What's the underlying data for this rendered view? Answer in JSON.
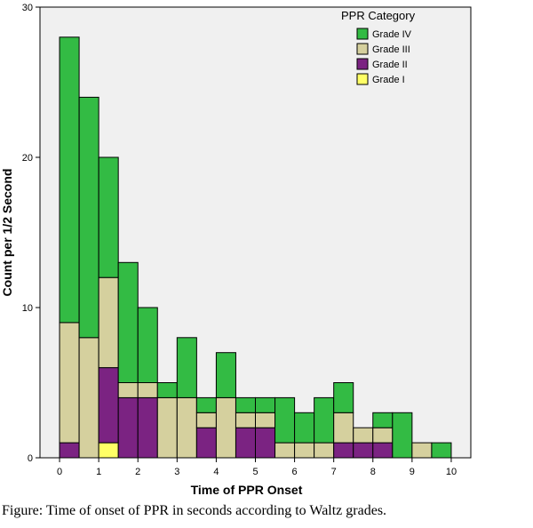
{
  "chart_data": {
    "type": "bar",
    "stacked": true,
    "histogram": true,
    "bin_width": 0.5,
    "xlabel": "Time of PPR Onset",
    "ylabel": "Count per 1/2 Second",
    "xlim": [
      -0.5,
      10.5
    ],
    "ylim": [
      0,
      30
    ],
    "x_ticks": [
      0,
      1,
      2,
      3,
      4,
      5,
      6,
      7,
      8,
      9,
      10
    ],
    "y_ticks": [
      0,
      10,
      20,
      30
    ],
    "grid": false,
    "legend": {
      "title": "PPR Category",
      "position": "top-right"
    },
    "plot_background": "#f0f0f0",
    "bins": [
      0,
      0.5,
      1,
      1.5,
      2,
      2.5,
      3,
      3.5,
      4,
      4.5,
      5,
      5.5,
      6,
      6.5,
      7,
      7.5,
      8,
      8.5,
      9,
      9.5
    ],
    "series": [
      {
        "name": "Grade I",
        "color": "#ffff66",
        "values": [
          0,
          0,
          1,
          0,
          0,
          0,
          0,
          0,
          0,
          0,
          0,
          0,
          0,
          0,
          0,
          0,
          0,
          0,
          0,
          0
        ]
      },
      {
        "name": "Grade II",
        "color": "#7b2382",
        "values": [
          1,
          0,
          5,
          4,
          4,
          0,
          0,
          2,
          0,
          2,
          2,
          0,
          0,
          0,
          1,
          1,
          1,
          0,
          0,
          0
        ]
      },
      {
        "name": "Grade III",
        "color": "#d5d09e",
        "values": [
          8,
          8,
          6,
          1,
          1,
          4,
          4,
          1,
          4,
          1,
          1,
          1,
          1,
          1,
          2,
          1,
          1,
          0,
          1,
          0
        ]
      },
      {
        "name": "Grade IV",
        "color": "#33bb44",
        "values": [
          19,
          16,
          8,
          8,
          5,
          1,
          4,
          1,
          3,
          1,
          1,
          3,
          2,
          3,
          2,
          0,
          1,
          3,
          0,
          1
        ]
      }
    ]
  },
  "caption": "Figure: Time of onset of PPR in seconds according to Waltz grades."
}
